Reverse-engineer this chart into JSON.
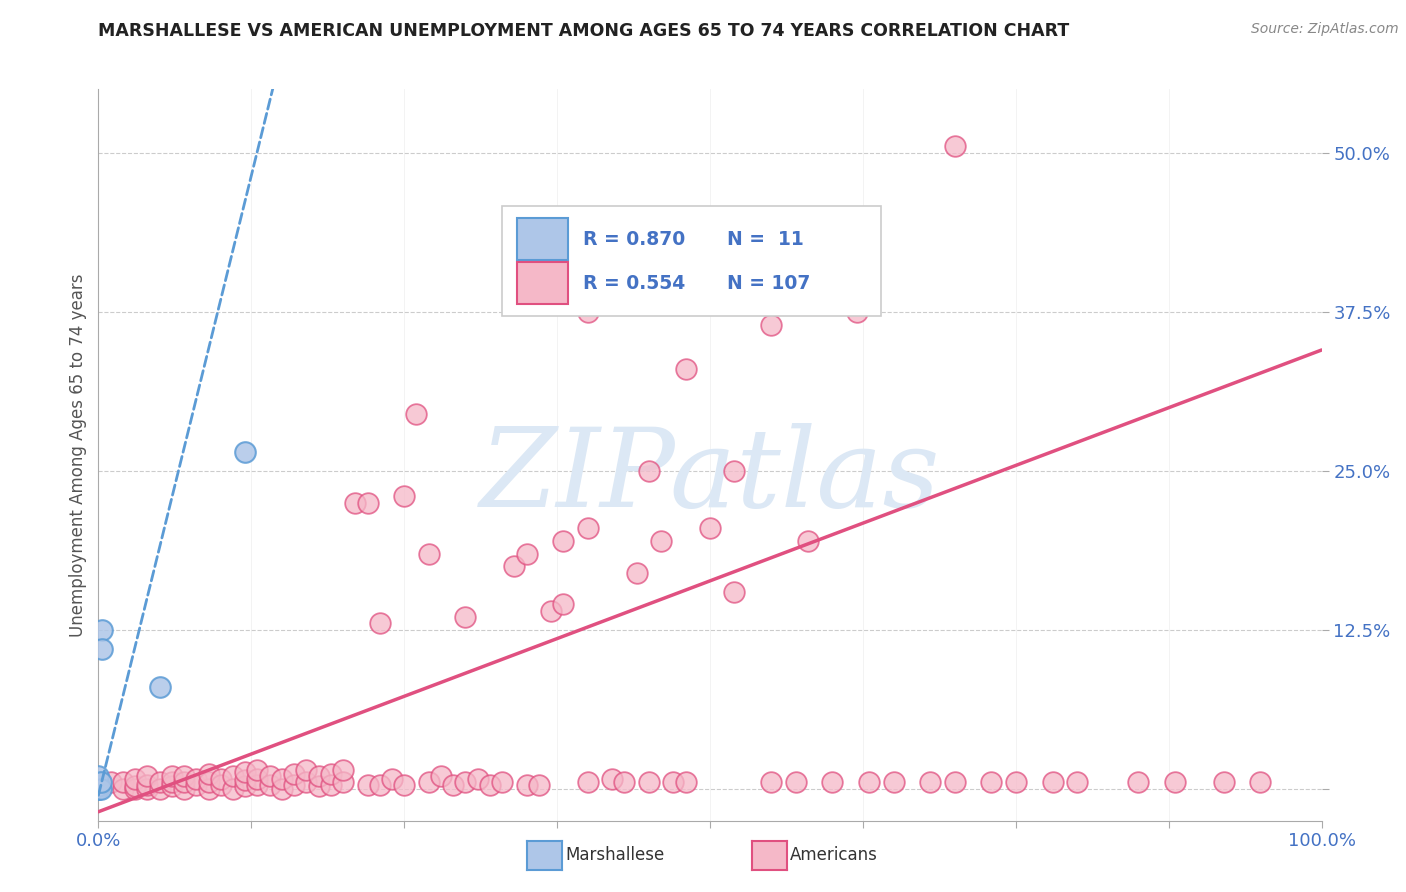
{
  "title": "MARSHALLESE VS AMERICAN UNEMPLOYMENT AMONG AGES 65 TO 74 YEARS CORRELATION CHART",
  "source": "Source: ZipAtlas.com",
  "ylabel": "Unemployment Among Ages 65 to 74 years",
  "xlim": [
    0,
    1.0
  ],
  "ylim": [
    -0.025,
    0.55
  ],
  "ytick_positions": [
    0.0,
    0.125,
    0.25,
    0.375,
    0.5
  ],
  "yticklabels": [
    "",
    "12.5%",
    "25.0%",
    "37.5%",
    "50.0%"
  ],
  "marshallese_face_color": "#aec6e8",
  "marshallese_edge_color": "#5b9bd5",
  "americans_face_color": "#f5b8c8",
  "americans_line_color": "#e05080",
  "watermark_color": "#dce8f5",
  "R_marshallese": 0.87,
  "N_marshallese": 11,
  "R_americans": 0.554,
  "N_americans": 107,
  "ma_x": [
    0.0,
    0.0,
    0.0,
    0.0,
    0.0,
    0.002,
    0.002,
    0.003,
    0.003,
    0.05,
    0.12
  ],
  "ma_y": [
    0.0,
    0.0,
    0.002,
    0.005,
    0.01,
    0.0,
    0.005,
    0.125,
    0.11,
    0.08,
    0.265
  ],
  "am_x": [
    0.01,
    0.02,
    0.02,
    0.03,
    0.03,
    0.03,
    0.04,
    0.04,
    0.04,
    0.05,
    0.05,
    0.06,
    0.06,
    0.06,
    0.07,
    0.07,
    0.07,
    0.08,
    0.08,
    0.09,
    0.09,
    0.09,
    0.1,
    0.1,
    0.11,
    0.11,
    0.12,
    0.12,
    0.12,
    0.13,
    0.13,
    0.13,
    0.14,
    0.14,
    0.15,
    0.15,
    0.16,
    0.16,
    0.17,
    0.17,
    0.18,
    0.18,
    0.19,
    0.19,
    0.2,
    0.2,
    0.21,
    0.22,
    0.22,
    0.23,
    0.23,
    0.24,
    0.25,
    0.25,
    0.26,
    0.27,
    0.27,
    0.28,
    0.29,
    0.3,
    0.3,
    0.31,
    0.32,
    0.33,
    0.34,
    0.35,
    0.35,
    0.36,
    0.37,
    0.38,
    0.38,
    0.4,
    0.4,
    0.42,
    0.43,
    0.44,
    0.45,
    0.46,
    0.47,
    0.48,
    0.5,
    0.52,
    0.55,
    0.57,
    0.6,
    0.63,
    0.65,
    0.68,
    0.7,
    0.73,
    0.75,
    0.78,
    0.8,
    0.85,
    0.88,
    0.92,
    0.95,
    0.4,
    0.45,
    0.48,
    0.52,
    0.55,
    0.58,
    0.62,
    0.7
  ],
  "am_y": [
    0.005,
    0.0,
    0.005,
    0.0,
    0.002,
    0.008,
    0.0,
    0.003,
    0.01,
    0.0,
    0.005,
    0.002,
    0.005,
    0.01,
    0.0,
    0.005,
    0.01,
    0.003,
    0.008,
    0.0,
    0.005,
    0.012,
    0.003,
    0.008,
    0.0,
    0.01,
    0.002,
    0.007,
    0.013,
    0.003,
    0.008,
    0.015,
    0.003,
    0.01,
    0.0,
    0.008,
    0.003,
    0.012,
    0.005,
    0.015,
    0.002,
    0.01,
    0.003,
    0.012,
    0.005,
    0.015,
    0.225,
    0.003,
    0.225,
    0.003,
    0.13,
    0.008,
    0.003,
    0.23,
    0.295,
    0.005,
    0.185,
    0.01,
    0.003,
    0.005,
    0.135,
    0.008,
    0.003,
    0.005,
    0.175,
    0.003,
    0.185,
    0.003,
    0.14,
    0.195,
    0.145,
    0.005,
    0.205,
    0.008,
    0.005,
    0.17,
    0.005,
    0.195,
    0.005,
    0.005,
    0.205,
    0.155,
    0.005,
    0.005,
    0.005,
    0.005,
    0.005,
    0.005,
    0.005,
    0.005,
    0.005,
    0.005,
    0.005,
    0.005,
    0.005,
    0.005,
    0.005,
    0.375,
    0.25,
    0.33,
    0.25,
    0.365,
    0.195,
    0.375,
    0.505
  ],
  "am_trendline_x": [
    0.0,
    1.0
  ],
  "am_trendline_y": [
    -0.018,
    0.345
  ],
  "ma_trendline_x": [
    0.0,
    0.145
  ],
  "ma_trendline_y": [
    -0.005,
    0.56
  ]
}
